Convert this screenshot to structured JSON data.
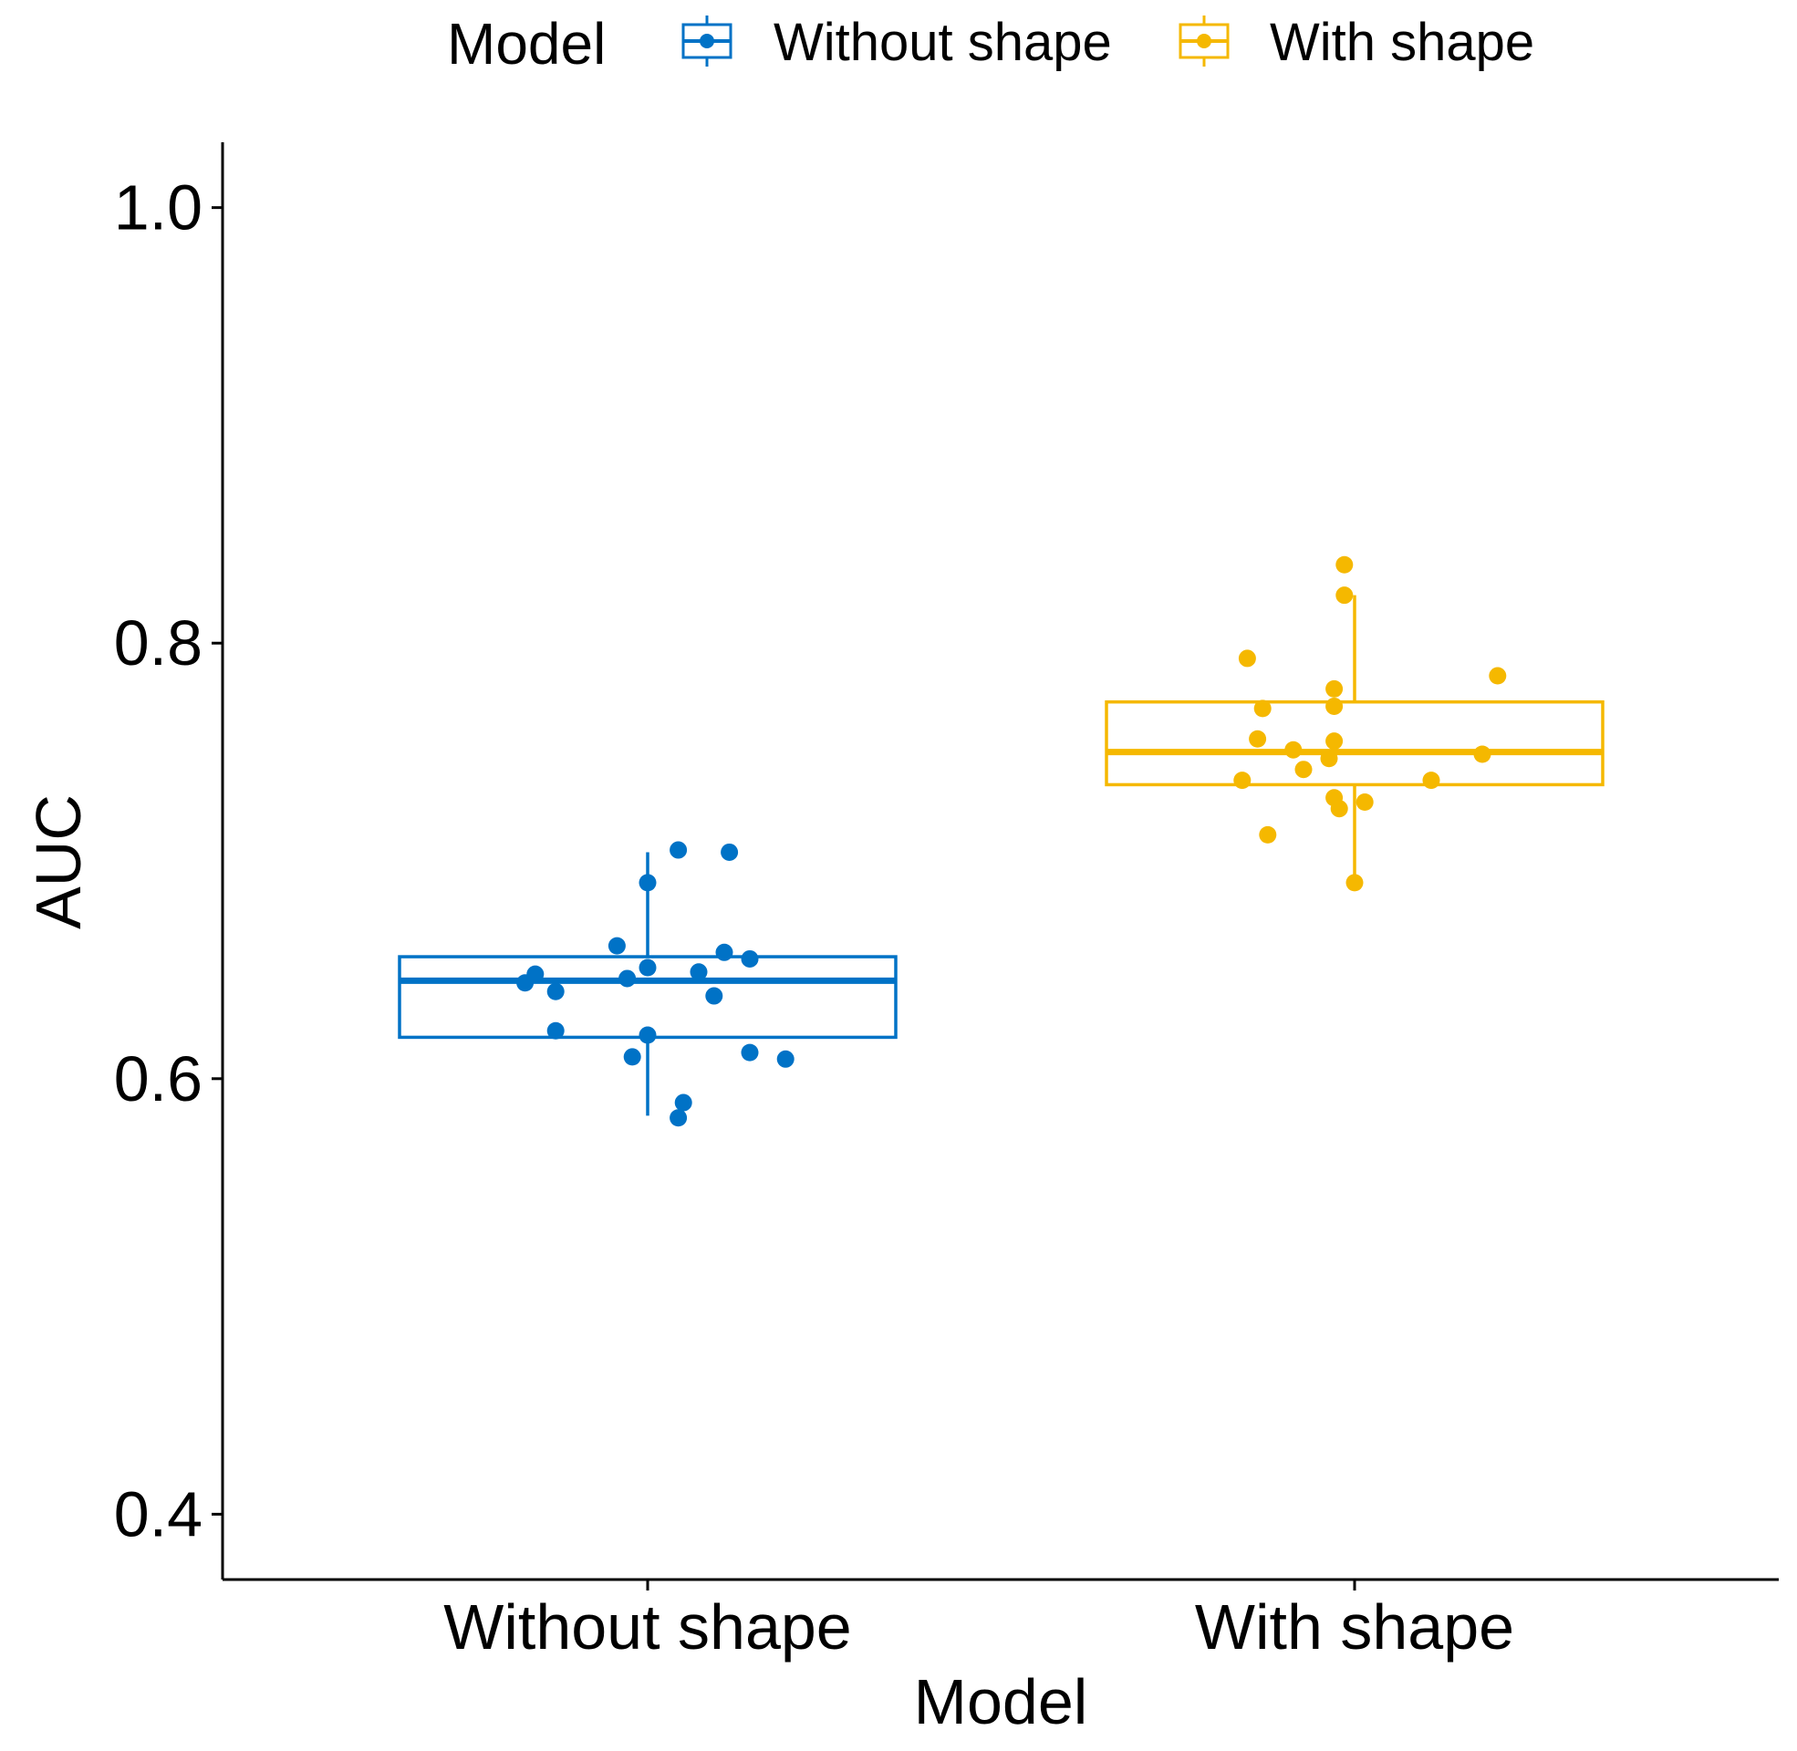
{
  "chart_data": {
    "type": "boxplot",
    "title": "",
    "xlabel": "Model",
    "ylabel": "AUC",
    "ylim": [
      0.37,
      1.03
    ],
    "yticks": [
      0.4,
      0.6,
      0.8,
      1.0
    ],
    "ytick_labels": [
      "0.4",
      "0.6",
      "0.8",
      "1.0"
    ],
    "categories": [
      "Without shape",
      "With shape"
    ],
    "legend": {
      "title": "Model",
      "placement": "top",
      "entries": [
        "Without shape",
        "With shape"
      ]
    },
    "series": [
      {
        "name": "Without shape",
        "color": "#0072C6",
        "box": {
          "whisker_low": 0.583,
          "q1": 0.619,
          "median": 0.645,
          "q3": 0.656,
          "whisker_high": 0.704
        },
        "points": [
          {
            "x": -0.24,
            "y": 0.644
          },
          {
            "x": -0.22,
            "y": 0.648
          },
          {
            "x": -0.18,
            "y": 0.64
          },
          {
            "x": -0.18,
            "y": 0.622
          },
          {
            "x": -0.06,
            "y": 0.661
          },
          {
            "x": -0.04,
            "y": 0.646
          },
          {
            "x": -0.03,
            "y": 0.61
          },
          {
            "x": 0.0,
            "y": 0.69
          },
          {
            "x": 0.0,
            "y": 0.651
          },
          {
            "x": 0.0,
            "y": 0.62
          },
          {
            "x": 0.06,
            "y": 0.705
          },
          {
            "x": 0.07,
            "y": 0.589
          },
          {
            "x": 0.06,
            "y": 0.582
          },
          {
            "x": 0.1,
            "y": 0.649
          },
          {
            "x": 0.13,
            "y": 0.638
          },
          {
            "x": 0.15,
            "y": 0.658
          },
          {
            "x": 0.16,
            "y": 0.704
          },
          {
            "x": 0.2,
            "y": 0.655
          },
          {
            "x": 0.2,
            "y": 0.612
          },
          {
            "x": 0.27,
            "y": 0.609
          }
        ]
      },
      {
        "name": "With shape",
        "color": "#F5B800",
        "box": {
          "whisker_low": 0.69,
          "q1": 0.735,
          "median": 0.75,
          "q3": 0.773,
          "whisker_high": 0.822
        },
        "points": [
          {
            "x": -0.22,
            "y": 0.737
          },
          {
            "x": -0.21,
            "y": 0.793
          },
          {
            "x": -0.19,
            "y": 0.756
          },
          {
            "x": -0.18,
            "y": 0.77
          },
          {
            "x": -0.17,
            "y": 0.712
          },
          {
            "x": -0.12,
            "y": 0.751
          },
          {
            "x": -0.1,
            "y": 0.742
          },
          {
            "x": -0.05,
            "y": 0.747
          },
          {
            "x": -0.04,
            "y": 0.755
          },
          {
            "x": -0.04,
            "y": 0.779
          },
          {
            "x": -0.04,
            "y": 0.771
          },
          {
            "x": -0.04,
            "y": 0.729
          },
          {
            "x": -0.03,
            "y": 0.724
          },
          {
            "x": -0.02,
            "y": 0.822
          },
          {
            "x": -0.02,
            "y": 0.836
          },
          {
            "x": 0.0,
            "y": 0.69
          },
          {
            "x": 0.02,
            "y": 0.727
          },
          {
            "x": 0.15,
            "y": 0.737
          },
          {
            "x": 0.25,
            "y": 0.749
          },
          {
            "x": 0.28,
            "y": 0.785
          }
        ]
      }
    ]
  }
}
